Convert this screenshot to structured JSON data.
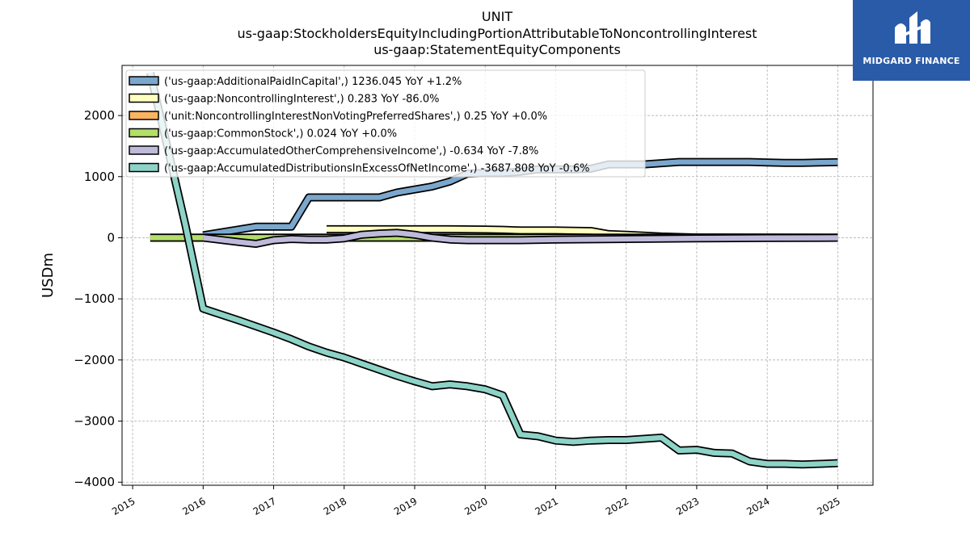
{
  "chart_data": {
    "type": "area",
    "title": "UNIT",
    "subtitle_lines": [
      "us-gaap:StockholdersEquityIncludingPortionAttributableToNoncontrollingInterest",
      "us-gaap:StatementEquityComponents"
    ],
    "xlabel": "",
    "ylabel": "USDm",
    "xlim": [
      2014.85,
      2025.5
    ],
    "ylim": [
      -4050,
      2820
    ],
    "x_ticks": [
      "2015",
      "2016",
      "2017",
      "2018",
      "2019",
      "2020",
      "2021",
      "2022",
      "2023",
      "2024",
      "2025"
    ],
    "y_ticks": [
      -4000,
      -3000,
      -2000,
      -1000,
      0,
      1000,
      2000
    ],
    "y_tick_labels": [
      "−4000",
      "−3000",
      "−2000",
      "−1000",
      "0",
      "1000",
      "2000"
    ],
    "grid": true,
    "legend_position": "top-left",
    "series": [
      {
        "name": "('us-gaap:AdditionalPaidInCapital',) 1236.045 YoY +1.2%",
        "color": "#7ba7cc",
        "x": [
          2016.0,
          2016.75,
          2017.25,
          2017.5,
          2018.0,
          2018.5,
          2018.75,
          2019.0,
          2019.25,
          2019.5,
          2019.75,
          2020.0,
          2020.25,
          2020.5,
          2020.75,
          2021.0,
          2021.25,
          2021.5,
          2021.75,
          2022.0,
          2022.25,
          2022.5,
          2022.75,
          2023.0,
          2023.25,
          2023.5,
          2023.75,
          2024.0,
          2024.25,
          2024.5,
          2024.75,
          2025.0
        ],
        "values": [
          40,
          180,
          180,
          660,
          660,
          660,
          740,
          790,
          840,
          920,
          1050,
          1060,
          1060,
          1080,
          1120,
          1120,
          1120,
          1130,
          1200,
          1200,
          1200,
          1220,
          1240,
          1240,
          1240,
          1240,
          1240,
          1230,
          1225,
          1225,
          1230,
          1236
        ]
      },
      {
        "name": "('us-gaap:NoncontrollingInterest',) 0.283 YoY -86.0%",
        "color": "#ffffbf",
        "x": [
          2017.75,
          2018.0,
          2018.5,
          2019.0,
          2019.5,
          2020.0,
          2020.25,
          2020.5,
          2021.0,
          2021.5,
          2021.75,
          2022.0,
          2022.5,
          2023.0,
          2024.0,
          2025.0
        ],
        "values": [
          140,
          140,
          140,
          140,
          140,
          135,
          130,
          120,
          120,
          110,
          60,
          50,
          20,
          5,
          2,
          0.283
        ]
      },
      {
        "name": "('unit:NoncontrollingInterestNonVotingPreferredShares',) 0.25 YoY +0.0%",
        "color": "#fdb462",
        "x": [
          2015.25,
          2025.0
        ],
        "values": [
          0.25,
          0.25
        ]
      },
      {
        "name": "('us-gaap:CommonStock',) 0.024 YoY +0.0%",
        "color": "#b3de69",
        "x": [
          2015.25,
          2025.0
        ],
        "values": [
          0.024,
          0.024
        ]
      },
      {
        "name": "('us-gaap:AccumulatedOtherComprehensiveIncome',) -0.634 YoY -7.8%",
        "color": "#bebada",
        "x": [
          2016.0,
          2016.5,
          2016.75,
          2017.0,
          2017.25,
          2017.5,
          2017.75,
          2018.0,
          2018.25,
          2018.5,
          2018.75,
          2019.0,
          2019.25,
          2019.5,
          2019.75,
          2020.0,
          2020.5,
          2021.0,
          2022.0,
          2023.0,
          2024.0,
          2025.0
        ],
        "values": [
          0,
          -70,
          -100,
          -40,
          -20,
          -30,
          -30,
          -10,
          50,
          70,
          80,
          50,
          0,
          -30,
          -40,
          -40,
          -40,
          -30,
          -20,
          -10,
          -5,
          -0.634
        ]
      },
      {
        "name": "('us-gaap:AccumulatedDistributionsInExcessOfNetIncome',) -3687.808 YoY -0.6%",
        "color": "#8dd3c7",
        "x": [
          2015.25,
          2015.75,
          2016.0,
          2016.5,
          2016.75,
          2017.0,
          2017.25,
          2017.5,
          2017.75,
          2018.0,
          2018.25,
          2018.5,
          2018.75,
          2019.0,
          2019.25,
          2019.5,
          2019.75,
          2020.0,
          2020.25,
          2020.5,
          2020.75,
          2021.0,
          2021.25,
          2021.5,
          2021.75,
          2022.0,
          2022.25,
          2022.5,
          2022.75,
          2023.0,
          2023.25,
          2023.5,
          2023.75,
          2024.0,
          2024.25,
          2024.5,
          2024.75,
          2025.0
        ],
        "values": [
          2700,
          200,
          -1160,
          -1350,
          -1450,
          -1550,
          -1660,
          -1780,
          -1880,
          -1960,
          -2060,
          -2160,
          -2260,
          -2350,
          -2430,
          -2400,
          -2430,
          -2480,
          -2580,
          -3220,
          -3250,
          -3320,
          -3340,
          -3320,
          -3310,
          -3310,
          -3290,
          -3270,
          -3480,
          -3470,
          -3520,
          -3530,
          -3660,
          -3700,
          -3700,
          -3710,
          -3700,
          -3688
        ]
      }
    ]
  },
  "logo": {
    "text": "MIDGARD FINANCE"
  }
}
